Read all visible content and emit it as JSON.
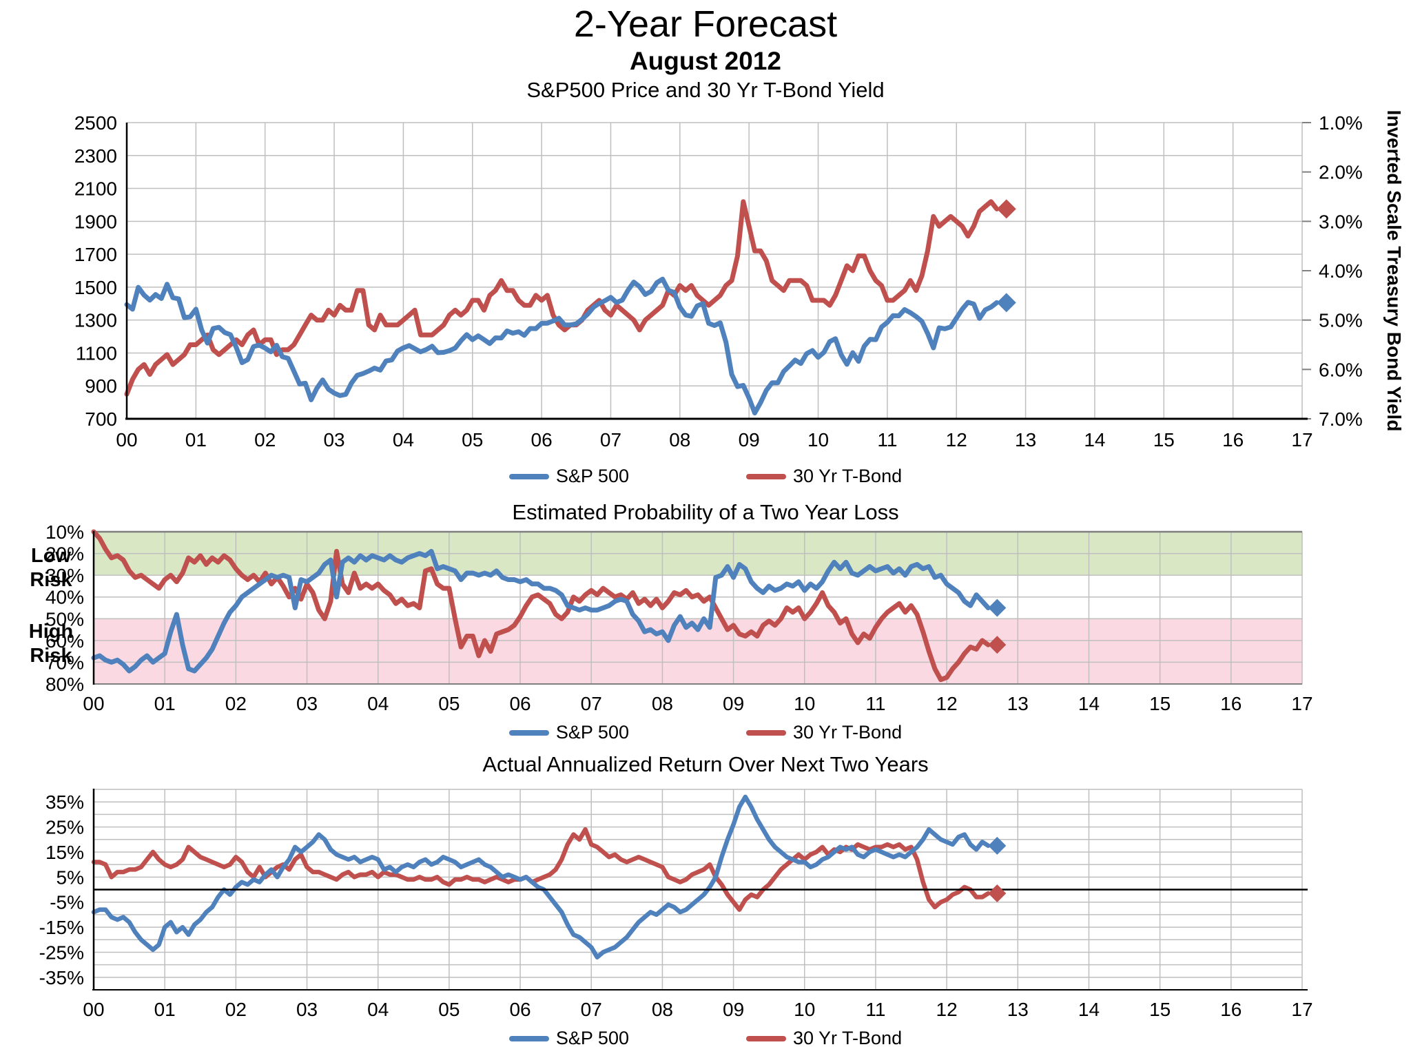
{
  "page": {
    "title": "2-Year Forecast",
    "subtitle": "August 2012"
  },
  "legend": {
    "sp500": "S&P 500",
    "tbond": "30 Yr T-Bond"
  },
  "colors": {
    "sp500": "#4F81BD",
    "tbond": "#C0504D",
    "grid": "#BFBFBF",
    "axis": "#000000",
    "band_top_border": "#7F7F7F",
    "low_risk_band": "#D9E7C5",
    "high_risk_band": "#FBD9E2"
  },
  "charts": {
    "chart1": {
      "title": "S&P500 Price and 30 Yr T-Bond Yield",
      "y_left_ticks": [
        "2500",
        "2300",
        "2100",
        "1900",
        "1700",
        "1500",
        "1300",
        "1100",
        "900",
        "700"
      ],
      "y_left_values": [
        2500,
        2300,
        2100,
        1900,
        1700,
        1500,
        1300,
        1100,
        900,
        700
      ],
      "y_right_ticks": [
        "1.0%",
        "2.0%",
        "3.0%",
        "4.0%",
        "5.0%",
        "6.0%",
        "7.0%"
      ],
      "y_right_title": "Inverted Scale Treasury Bond Yield"
    },
    "chart2": {
      "title": "Estimated Probability of a Two Year Loss",
      "y_ticks": [
        "10%",
        "20%",
        "30%",
        "40%",
        "50%",
        "60%",
        "70%",
        "80%"
      ],
      "y_values": [
        10,
        20,
        30,
        40,
        50,
        60,
        70,
        80
      ],
      "low_risk_label": "Low\nRisk",
      "high_risk_label": "High\nRisk"
    },
    "chart3": {
      "title": "Actual Annualized Return Over Next Two Years",
      "y_ticks": [
        "35%",
        "25%",
        "15%",
        "5%",
        "-5%",
        "-15%",
        "-25%",
        "-35%"
      ],
      "y_values": [
        35,
        25,
        15,
        5,
        -5,
        -15,
        -25,
        -35
      ]
    }
  },
  "x_ticks": [
    "00",
    "01",
    "02",
    "03",
    "04",
    "05",
    "06",
    "07",
    "08",
    "09",
    "10",
    "11",
    "12",
    "13",
    "14",
    "15",
    "16",
    "17"
  ],
  "chart_data": [
    {
      "type": "line",
      "title": "S&P500 Price and 30 Yr T-Bond Yield",
      "x_start": 2000.0,
      "x_step": 0.0833,
      "x_range": [
        2000,
        2017
      ],
      "y_left_label": "",
      "y_left_range": [
        700,
        2500
      ],
      "y_right_label": "Inverted Scale Treasury Bond Yield",
      "y_right_range_pct": [
        1.0,
        7.0
      ],
      "y_right_inverted": true,
      "end_marker": "diamond",
      "series": [
        {
          "name": "S&P 500",
          "axis": "left",
          "values": [
            1394,
            1366,
            1499,
            1452,
            1421,
            1455,
            1431,
            1518,
            1436,
            1429,
            1315,
            1320,
            1366,
            1240,
            1160,
            1249,
            1256,
            1224,
            1211,
            1134,
            1041,
            1060,
            1139,
            1148,
            1130,
            1107,
            1147,
            1077,
            1067,
            990,
            911,
            916,
            815,
            886,
            936,
            880,
            856,
            841,
            848,
            917,
            964,
            975,
            990,
            1008,
            996,
            1051,
            1058,
            1112,
            1131,
            1145,
            1126,
            1107,
            1121,
            1141,
            1102,
            1104,
            1114,
            1130,
            1174,
            1212,
            1181,
            1204,
            1181,
            1157,
            1192,
            1191,
            1234,
            1220,
            1229,
            1207,
            1249,
            1248,
            1280,
            1281,
            1295,
            1311,
            1270,
            1270,
            1277,
            1304,
            1336,
            1378,
            1401,
            1418,
            1438,
            1407,
            1421,
            1482,
            1531,
            1503,
            1455,
            1474,
            1527,
            1549,
            1481,
            1468,
            1379,
            1331,
            1323,
            1386,
            1400,
            1280,
            1267,
            1283,
            1166,
            969,
            896,
            903,
            826,
            735,
            798,
            873,
            919,
            919,
            987,
            1021,
            1057,
            1036,
            1096,
            1115,
            1074,
            1104,
            1169,
            1187,
            1089,
            1031,
            1102,
            1049,
            1141,
            1183,
            1181,
            1258,
            1286,
            1327,
            1326,
            1364,
            1345,
            1321,
            1292,
            1219,
            1131,
            1253,
            1247,
            1258,
            1312,
            1366,
            1408,
            1398,
            1310,
            1362,
            1379,
            1406
          ]
        },
        {
          "name": "30 Yr T-Bond",
          "axis": "right_pct",
          "values": [
            6.5,
            6.2,
            6.0,
            5.9,
            6.1,
            5.9,
            5.8,
            5.7,
            5.9,
            5.8,
            5.7,
            5.5,
            5.5,
            5.4,
            5.3,
            5.6,
            5.7,
            5.6,
            5.5,
            5.4,
            5.5,
            5.3,
            5.2,
            5.5,
            5.4,
            5.4,
            5.7,
            5.6,
            5.6,
            5.5,
            5.3,
            5.1,
            4.9,
            5.0,
            5.0,
            4.8,
            4.9,
            4.7,
            4.8,
            4.8,
            4.4,
            4.4,
            5.1,
            5.2,
            4.9,
            5.1,
            5.1,
            5.1,
            5.0,
            4.9,
            4.8,
            5.3,
            5.3,
            5.3,
            5.2,
            5.1,
            4.9,
            4.8,
            4.9,
            4.8,
            4.6,
            4.6,
            4.8,
            4.5,
            4.4,
            4.2,
            4.4,
            4.4,
            4.6,
            4.7,
            4.7,
            4.5,
            4.6,
            4.5,
            4.9,
            5.1,
            5.2,
            5.1,
            5.1,
            5.0,
            4.8,
            4.7,
            4.6,
            4.8,
            4.9,
            4.7,
            4.8,
            4.9,
            5.0,
            5.2,
            5.0,
            4.9,
            4.8,
            4.7,
            4.4,
            4.5,
            4.3,
            4.4,
            4.3,
            4.5,
            4.6,
            4.7,
            4.6,
            4.5,
            4.3,
            4.2,
            3.7,
            2.6,
            3.1,
            3.6,
            3.6,
            3.8,
            4.2,
            4.3,
            4.4,
            4.2,
            4.2,
            4.2,
            4.3,
            4.6,
            4.6,
            4.6,
            4.7,
            4.5,
            4.2,
            3.9,
            4.0,
            3.7,
            3.7,
            4.0,
            4.2,
            4.3,
            4.6,
            4.6,
            4.5,
            4.4,
            4.2,
            4.4,
            4.1,
            3.6,
            2.9,
            3.1,
            3.0,
            2.9,
            3.0,
            3.1,
            3.3,
            3.1,
            2.8,
            2.7,
            2.6,
            2.75
          ]
        }
      ]
    },
    {
      "type": "line",
      "title": "Estimated Probability of a Two Year Loss",
      "x_start": 2000.0,
      "x_step": 0.0833,
      "x_range": [
        2000,
        2017
      ],
      "y_range": [
        10,
        80
      ],
      "y_inverted": true,
      "bands": [
        {
          "label": "Low Risk",
          "from": 10,
          "to": 30
        },
        {
          "label": "High Risk",
          "from": 50,
          "to": 80
        }
      ],
      "end_marker": "diamond",
      "series": [
        {
          "name": "S&P 500",
          "values": [
            68,
            67,
            69,
            70,
            69,
            71,
            74,
            72,
            69,
            67,
            70,
            68,
            66,
            56,
            48,
            62,
            73,
            74,
            71,
            68,
            64,
            58,
            52,
            47,
            44,
            40,
            38,
            36,
            34,
            32,
            30,
            31,
            30,
            31,
            45,
            32,
            33,
            31,
            29,
            25,
            23,
            40,
            24,
            22,
            24,
            21,
            23,
            21,
            22,
            23,
            21,
            23,
            24,
            22,
            21,
            20,
            21,
            19,
            27,
            26,
            27,
            28,
            32,
            29,
            29,
            30,
            29,
            30,
            28,
            31,
            32,
            32,
            33,
            32,
            34,
            34,
            36,
            36,
            37,
            39,
            44,
            45,
            46,
            45,
            46,
            46,
            45,
            44,
            42,
            41,
            42,
            48,
            51,
            56,
            55,
            57,
            56,
            60,
            53,
            49,
            54,
            52,
            55,
            50,
            54,
            31,
            30,
            26,
            31,
            25,
            27,
            33,
            36,
            38,
            35,
            37,
            36,
            34,
            35,
            33,
            37,
            34,
            36,
            33,
            28,
            24,
            27,
            24,
            29,
            30,
            28,
            26,
            28,
            27,
            26,
            29,
            27,
            30,
            26,
            25,
            27,
            26,
            31,
            30,
            34,
            36,
            38,
            42,
            44,
            39,
            42,
            45
          ]
        },
        {
          "name": "30 Yr T-Bond",
          "values": [
            10,
            13,
            18,
            22,
            21,
            23,
            28,
            31,
            30,
            32,
            34,
            36,
            32,
            30,
            33,
            29,
            22,
            24,
            21,
            25,
            22,
            24,
            21,
            23,
            27,
            30,
            32,
            30,
            33,
            29,
            34,
            31,
            35,
            40,
            36,
            41,
            34,
            38,
            46,
            50,
            42,
            19,
            34,
            38,
            29,
            36,
            34,
            36,
            34,
            37,
            39,
            43,
            41,
            44,
            43,
            45,
            28,
            27,
            34,
            36,
            36,
            50,
            63,
            58,
            58,
            67,
            60,
            65,
            57,
            56,
            55,
            53,
            49,
            44,
            40,
            39,
            41,
            43,
            48,
            50,
            47,
            40,
            42,
            39,
            37,
            39,
            36,
            38,
            40,
            39,
            41,
            38,
            43,
            41,
            44,
            41,
            45,
            42,
            38,
            39,
            37,
            40,
            39,
            42,
            40,
            45,
            50,
            55,
            53,
            57,
            58,
            56,
            58,
            53,
            51,
            53,
            50,
            45,
            47,
            45,
            50,
            47,
            43,
            38,
            44,
            47,
            52,
            50,
            57,
            61,
            57,
            59,
            54,
            50,
            47,
            45,
            43,
            47,
            44,
            48,
            56,
            65,
            73,
            78,
            77,
            73,
            70,
            66,
            63,
            64,
            60,
            62
          ]
        }
      ]
    },
    {
      "type": "line",
      "title": "Actual Annualized Return Over Next Two Years",
      "x_start": 2000.0,
      "x_step": 0.0833,
      "x_range": [
        2000,
        2017
      ],
      "y_range": [
        -40,
        40
      ],
      "gridline_step": 5,
      "zero_line": true,
      "end_marker": "diamond",
      "series": [
        {
          "name": "S&P 500",
          "values": [
            -9,
            -8,
            -8,
            -11,
            -12,
            -11,
            -13,
            -17,
            -20,
            -22,
            -24,
            -22,
            -15,
            -13,
            -17,
            -15,
            -18,
            -14,
            -12,
            -9,
            -7,
            -3,
            0,
            -2,
            1,
            3,
            2,
            4,
            3,
            6,
            8,
            5,
            9,
            12,
            17,
            15,
            17,
            19,
            22,
            20,
            16,
            14,
            13,
            12,
            13,
            11,
            12,
            13,
            12,
            8,
            9,
            7,
            9,
            10,
            9,
            11,
            12,
            10,
            11,
            13,
            12,
            11,
            9,
            10,
            11,
            12,
            10,
            9,
            7,
            5,
            6,
            5,
            4,
            5,
            3,
            1,
            0,
            -3,
            -6,
            -9,
            -14,
            -18,
            -19,
            -21,
            -23,
            -27,
            -25,
            -24,
            -23,
            -21,
            -19,
            -16,
            -13,
            -11,
            -9,
            -10,
            -8,
            -6,
            -7,
            -9,
            -8,
            -6,
            -4,
            -2,
            1,
            5,
            13,
            20,
            26,
            33,
            37,
            33,
            28,
            24,
            20,
            17,
            15,
            13,
            12,
            11,
            11,
            9,
            10,
            12,
            13,
            15,
            17,
            16,
            17,
            14,
            13,
            15,
            16,
            15,
            14,
            13,
            14,
            13,
            15,
            17,
            20,
            24,
            22,
            20,
            19,
            18,
            21,
            22,
            18,
            16,
            19,
            17.5
          ]
        },
        {
          "name": "30 Yr T-Bond",
          "values": [
            11,
            11,
            10,
            5,
            7,
            7,
            8,
            8,
            9,
            12,
            15,
            12,
            10,
            9,
            10,
            12,
            17,
            15,
            13,
            12,
            11,
            10,
            9,
            10,
            13,
            11,
            7,
            5,
            9,
            5,
            7,
            9,
            10,
            8,
            12,
            14,
            9,
            7,
            7,
            6,
            5,
            4,
            6,
            7,
            5,
            6,
            6,
            7,
            5,
            7,
            6,
            6,
            5,
            4,
            4,
            5,
            4,
            4,
            5,
            3,
            2,
            4,
            4,
            5,
            4,
            4,
            3,
            4,
            5,
            4,
            3,
            4,
            4,
            5,
            3,
            4,
            5,
            6,
            8,
            12,
            18,
            22,
            20,
            24,
            18,
            17,
            15,
            13,
            14,
            12,
            11,
            12,
            13,
            12,
            11,
            10,
            9,
            5,
            4,
            3,
            4,
            6,
            7,
            8,
            10,
            5,
            2,
            -2,
            -5,
            -8,
            -4,
            -2,
            -3,
            0,
            2,
            5,
            8,
            10,
            12,
            14,
            12,
            14,
            15,
            17,
            14,
            16,
            15,
            17,
            16,
            18,
            17,
            16,
            17,
            17,
            18,
            17,
            18,
            16,
            17,
            12,
            3,
            -4,
            -7,
            -5,
            -4,
            -2,
            -1,
            1,
            0,
            -3,
            -3,
            -1.5
          ]
        }
      ]
    }
  ]
}
